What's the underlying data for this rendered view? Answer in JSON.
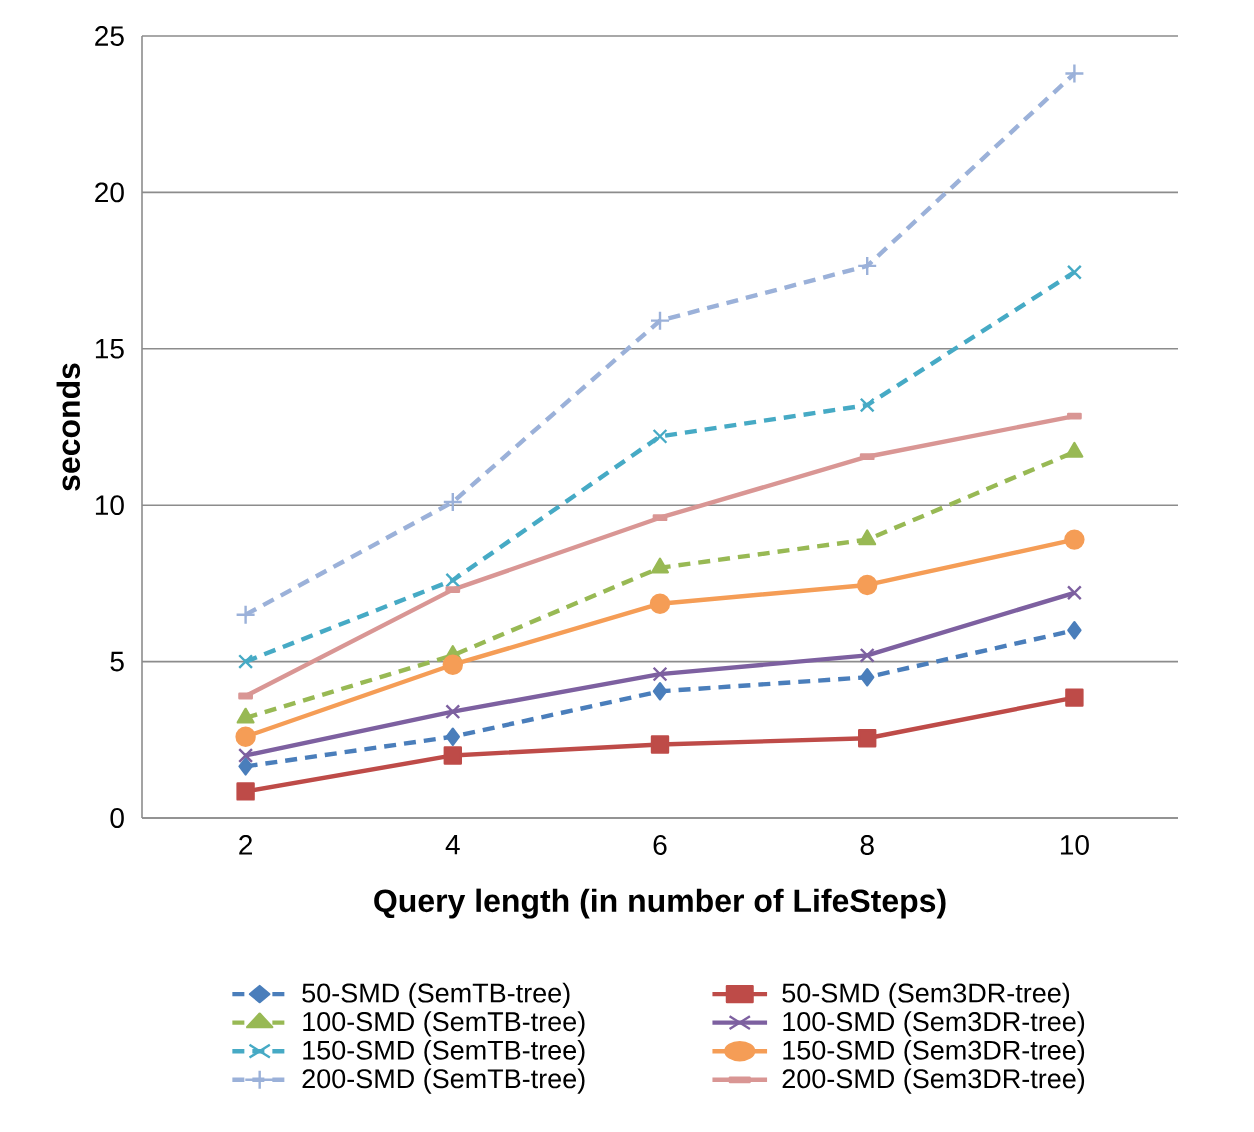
{
  "chart_data": {
    "type": "line",
    "xlabel": "Query length (in number of LifeSteps)",
    "ylabel": "seconds",
    "categories": [
      "2",
      "4",
      "6",
      "8",
      "10"
    ],
    "ylim": [
      0,
      25
    ],
    "yticks": [
      0,
      5,
      10,
      15,
      20,
      25
    ],
    "grid": "y",
    "legend": "bottom",
    "series": [
      {
        "name": "50-SMD (SemTB-tree)",
        "color": "#4a7ebb",
        "marker": "diamond",
        "line_style": "dashed",
        "values": [
          1.65,
          2.6,
          4.05,
          4.5,
          6.0
        ]
      },
      {
        "name": "50-SMD (Sem3DR-tree)",
        "color": "#be4b48",
        "marker": "square",
        "line_style": "solid",
        "values": [
          0.85,
          2.0,
          2.35,
          2.55,
          3.85
        ]
      },
      {
        "name": "100-SMD (SemTB-tree)",
        "color": "#98b954",
        "marker": "triangle",
        "line_style": "dashed",
        "values": [
          3.2,
          5.2,
          8.0,
          8.9,
          11.7
        ]
      },
      {
        "name": "100-SMD (Sem3DR-tree)",
        "color": "#7d60a0",
        "marker": "cross",
        "line_style": "solid",
        "values": [
          2.0,
          3.4,
          4.6,
          5.2,
          7.2
        ]
      },
      {
        "name": "150-SMD (SemTB-tree)",
        "color": "#46aac5",
        "marker": "cross",
        "line_style": "dashed",
        "values": [
          5.0,
          7.6,
          12.2,
          13.2,
          17.45
        ]
      },
      {
        "name": "150-SMD (Sem3DR-tree)",
        "color": "#f59d56",
        "marker": "circle",
        "line_style": "solid",
        "values": [
          2.6,
          4.9,
          6.85,
          7.45,
          8.9
        ]
      },
      {
        "name": "200-SMD (SemTB-tree)",
        "color": "#9bb1d9",
        "marker": "plus",
        "line_style": "dashed",
        "values": [
          6.5,
          10.1,
          15.9,
          17.65,
          23.8
        ]
      },
      {
        "name": "200-SMD (Sem3DR-tree)",
        "color": "#d99694",
        "marker": "square",
        "line_style": "solid",
        "values": [
          3.9,
          7.3,
          9.6,
          11.55,
          12.85
        ]
      }
    ]
  }
}
